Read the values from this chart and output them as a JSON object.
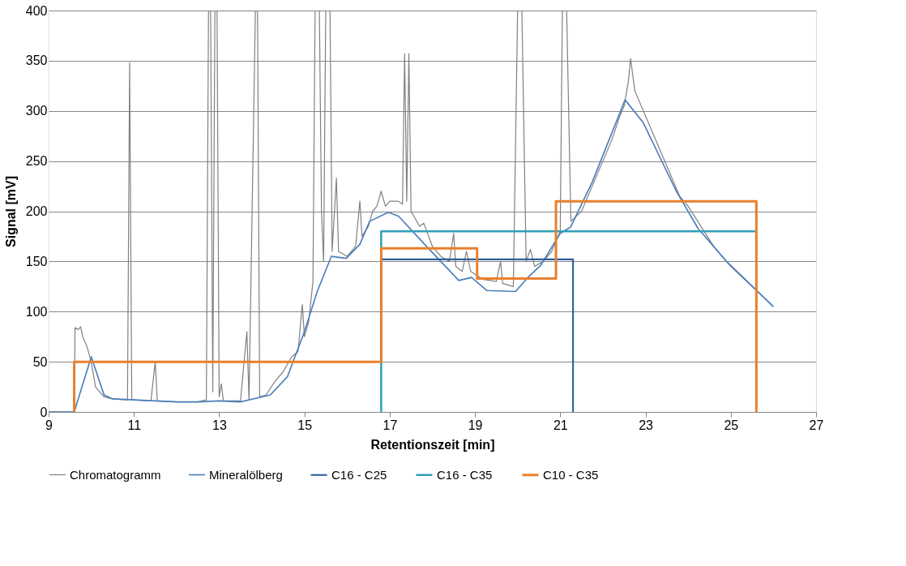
{
  "chart_data": {
    "type": "line",
    "xlabel": "Retentionszeit [min]",
    "ylabel": "Signal [mV]",
    "xlim": [
      9,
      27
    ],
    "xticks": [
      9,
      11,
      13,
      15,
      17,
      19,
      21,
      23,
      25,
      27
    ],
    "ylim": [
      0,
      400
    ],
    "yticks": [
      0,
      50,
      100,
      150,
      200,
      250,
      300,
      350,
      400
    ],
    "grid": "y",
    "legend": "bottom",
    "marker": "none",
    "line_style": "solid",
    "series": [
      {
        "name": "Chromatogramm",
        "color": "#808080",
        "x": [
          9,
          9.6,
          9.62,
          9.7,
          9.75,
          9.8,
          9.9,
          10.0,
          10.1,
          10.3,
          10.5,
          10.85,
          10.9,
          10.95,
          11.4,
          11.5,
          11.55,
          12,
          12.5,
          12.7,
          12.75,
          12.8,
          12.85,
          12.9,
          12.95,
          13.0,
          13.05,
          13.1,
          13.5,
          13.65,
          13.7,
          13.85,
          13.9,
          13.95,
          14.1,
          14.3,
          14.5,
          14.7,
          14.85,
          14.95,
          15.0,
          15.1,
          15.2,
          15.25,
          15.35,
          15.4,
          15.45,
          15.5,
          15.6,
          15.65,
          15.75,
          15.8,
          16,
          16.2,
          16.3,
          16.35,
          16.5,
          16.6,
          16.7,
          16.8,
          16.9,
          17.0,
          17.2,
          17.3,
          17.35,
          17.4,
          17.45,
          17.5,
          17.7,
          17.8,
          18,
          18.2,
          18.4,
          18.5,
          18.55,
          18.7,
          18.8,
          18.9,
          19.2,
          19.5,
          19.6,
          19.65,
          19.9,
          20.0,
          20.1,
          20.2,
          20.3,
          20.4,
          20.6,
          20.8,
          21.0,
          21.05,
          21.15,
          21.25,
          21.5,
          21.8,
          22.0,
          22.2,
          22.4,
          22.5,
          22.6,
          22.65,
          22.75,
          22.85,
          23.0,
          23.2,
          23.5,
          23.8,
          24.0,
          24.3,
          24.6,
          25.0,
          25.5,
          26
        ],
        "values": [
          0,
          0,
          84,
          82,
          85,
          75,
          65,
          50,
          25,
          15,
          13,
          12,
          348,
          12,
          11,
          50,
          11,
          10,
          10,
          12,
          400,
          400,
          20,
          400,
          400,
          15,
          28,
          11,
          11,
          80,
          12,
          400,
          400,
          15,
          17,
          30,
          40,
          55,
          60,
          107,
          75,
          90,
          130,
          400,
          400,
          200,
          150,
          400,
          400,
          160,
          233,
          160,
          155,
          165,
          210,
          175,
          185,
          200,
          205,
          220,
          205,
          210,
          210,
          207,
          357,
          210,
          357,
          200,
          185,
          188,
          165,
          155,
          150,
          178,
          145,
          140,
          160,
          140,
          132,
          130,
          150,
          128,
          125,
          400,
          400,
          150,
          162,
          145,
          150,
          160,
          180,
          400,
          400,
          190,
          200,
          230,
          250,
          270,
          295,
          305,
          330,
          352,
          320,
          310,
          295,
          275,
          245,
          215,
          205,
          185,
          165,
          145,
          125,
          105
        ]
      },
      {
        "name": "Mineralölberg",
        "color": "#4a7ebb",
        "x": [
          9,
          9.6,
          10.0,
          10.3,
          10.5,
          11,
          12,
          12.5,
          13,
          13.5,
          14,
          14.2,
          14.6,
          15.0,
          15.3,
          15.63,
          15.98,
          16.3,
          16.53,
          16.97,
          17.21,
          17.82,
          18.62,
          18.92,
          19.28,
          19.95,
          20.24,
          20.54,
          21.0,
          21.24,
          21.75,
          22.52,
          22.95,
          23.71,
          24.23,
          24.9,
          26.0
        ],
        "values": [
          0,
          0,
          55,
          17,
          13,
          12,
          10,
          10,
          11,
          10,
          15,
          17,
          35,
          80,
          120,
          155,
          153,
          167,
          190,
          199,
          195,
          167,
          131,
          134,
          121,
          120,
          134,
          146,
          178,
          184,
          229,
          311,
          288,
          221,
          183,
          150,
          105
        ]
      },
      {
        "name": "C16 - C25",
        "color": "#2e5f9e",
        "x": [
          16.8,
          21.3,
          21.3
        ],
        "values": [
          152,
          152,
          0
        ]
      },
      {
        "name": "C16 - C35",
        "color": "#31a0b8",
        "x": [
          16.8,
          16.8,
          25.6
        ],
        "values": [
          0,
          180,
          180
        ]
      },
      {
        "name": "C10 - C35",
        "color": "#e97f2c",
        "x": [
          9.6,
          9.6,
          16.8,
          16.8,
          19.05,
          19.05,
          20.9,
          20.9,
          25.6,
          25.6
        ],
        "values": [
          0,
          50,
          50,
          163,
          163,
          133,
          133,
          210,
          210,
          0
        ]
      }
    ]
  }
}
